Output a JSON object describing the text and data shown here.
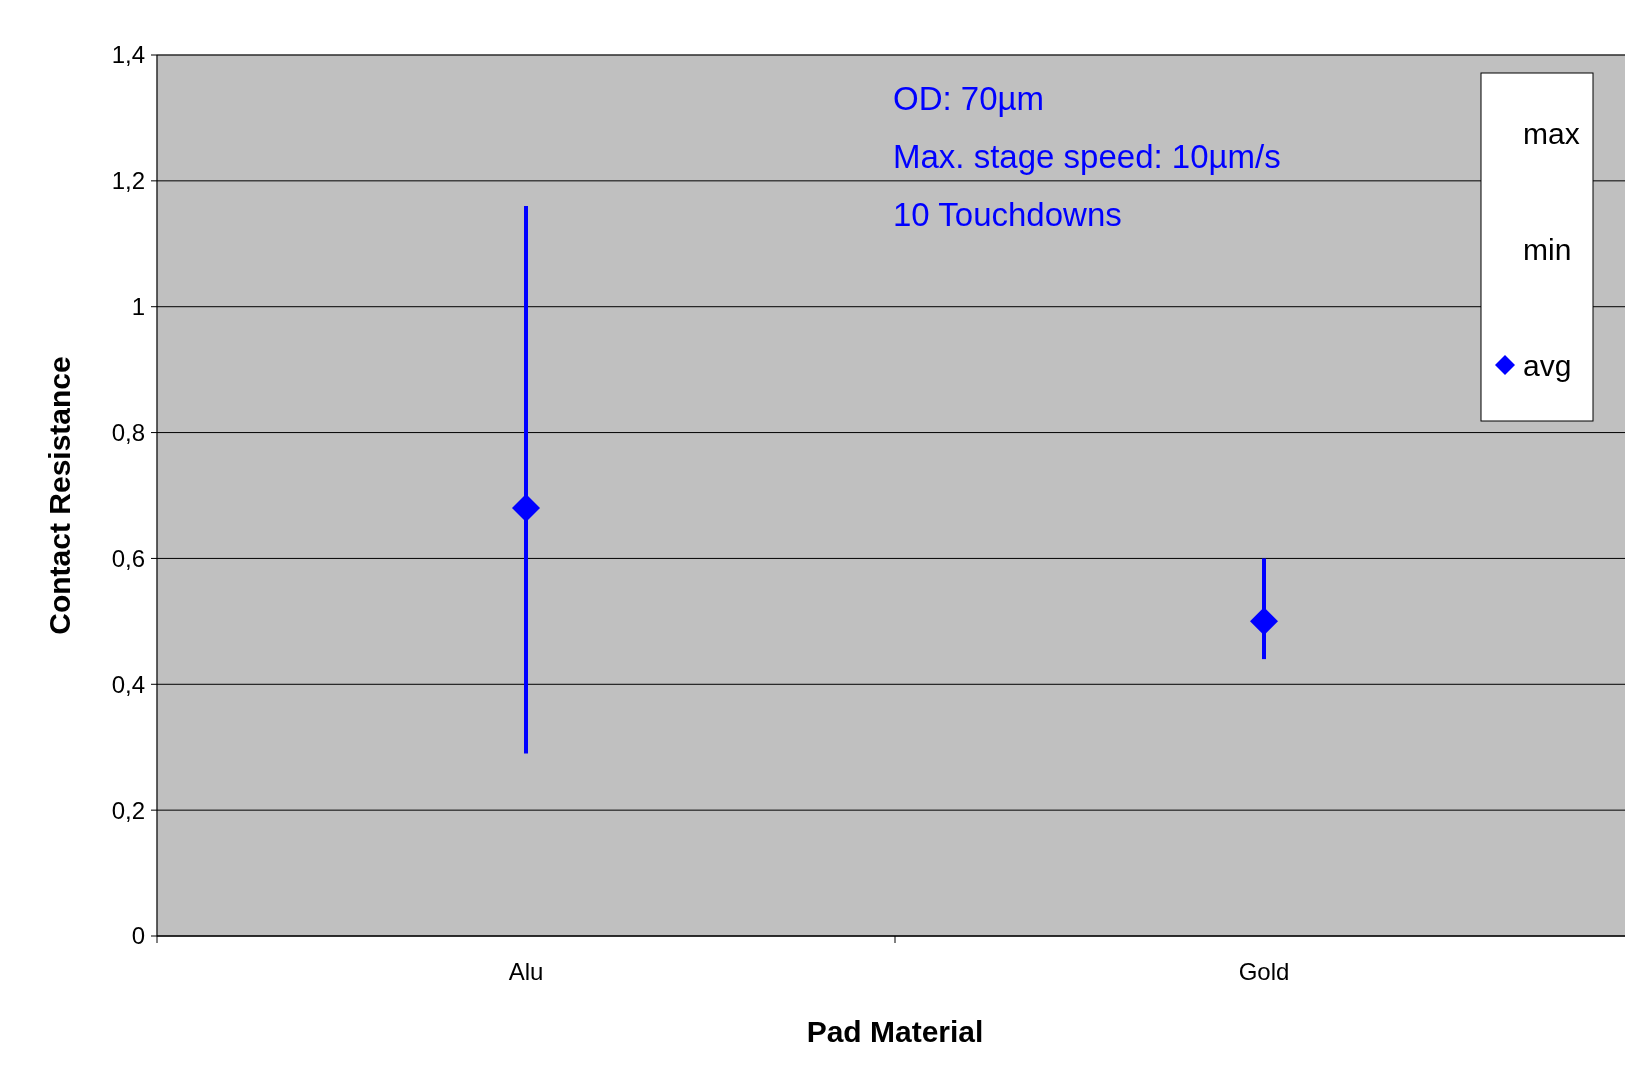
{
  "chart_data": {
    "type": "scatter",
    "xlabel": "Pad Material",
    "ylabel": "Contact Resistance",
    "categories": [
      "Alu",
      "Gold"
    ],
    "series": [
      {
        "name": "max",
        "marker": "none",
        "values": [
          null,
          null
        ]
      },
      {
        "name": "min",
        "marker": "none",
        "values": [
          null,
          null
        ]
      },
      {
        "name": "avg",
        "color": "#0000ff",
        "marker": "diamond",
        "values": [
          0.68,
          0.5
        ],
        "errors": [
          [
            0.29,
            1.16
          ],
          [
            0.44,
            0.6
          ]
        ]
      }
    ],
    "ylim": [
      0,
      1.4
    ],
    "yticks": [
      {
        "value": 0,
        "label": "0"
      },
      {
        "value": 0.2,
        "label": "0,2"
      },
      {
        "value": 0.4,
        "label": "0,4"
      },
      {
        "value": 0.6,
        "label": "0,6"
      },
      {
        "value": 0.8,
        "label": "0,8"
      },
      {
        "value": 1,
        "label": "1"
      },
      {
        "value": 1.2,
        "label": "1,2"
      },
      {
        "value": 1.4,
        "label": "1,4"
      }
    ],
    "grid": "y",
    "legend": "top right",
    "annotations": [
      "OD: 70µm",
      "Max. stage speed: 10µm/s",
      "10 Touchdowns"
    ]
  }
}
